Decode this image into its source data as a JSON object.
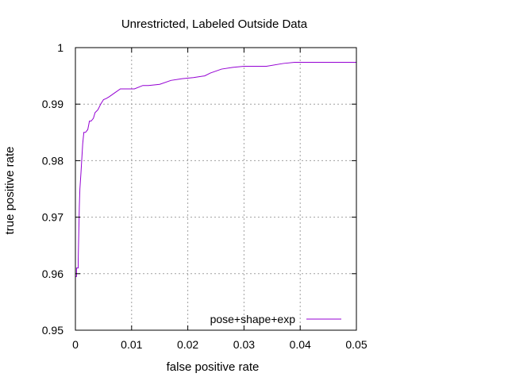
{
  "chart_data": {
    "type": "line",
    "title": "Unrestricted, Labeled Outside Data",
    "xlabel": "false positive rate",
    "ylabel": "true positive rate",
    "xlim": [
      0,
      0.05
    ],
    "ylim": [
      0.95,
      1
    ],
    "x_ticks": [
      0,
      0.01,
      0.02,
      0.03,
      0.04,
      0.05
    ],
    "x_tick_labels": [
      "0",
      "0.01",
      "0.02",
      "0.03",
      "0.04",
      "0.05"
    ],
    "y_ticks": [
      0.95,
      0.96,
      0.97,
      0.98,
      0.99,
      1
    ],
    "y_tick_labels": [
      "0.95",
      "0.96",
      "0.97",
      "0.98",
      "0.99",
      "1"
    ],
    "grid": true,
    "legend_position": "bottom-right",
    "series": [
      {
        "name": "pose+shape+exp",
        "color": "#9400d3",
        "x": [
          0,
          0,
          0.0002,
          0.0002,
          0.0005,
          0.0005,
          0.0007,
          0.0008,
          0.001,
          0.0013,
          0.0015,
          0.0018,
          0.0022,
          0.0025,
          0.0028,
          0.0032,
          0.0035,
          0.004,
          0.0045,
          0.005,
          0.0055,
          0.006,
          0.007,
          0.008,
          0.009,
          0.0105,
          0.012,
          0.013,
          0.015,
          0.017,
          0.019,
          0.021,
          0.023,
          0.024,
          0.026,
          0.028,
          0.03,
          0.034,
          0.037,
          0.039,
          0.041,
          0.045,
          0.05
        ],
        "y": [
          0.95,
          0.9595,
          0.9595,
          0.961,
          0.961,
          0.9625,
          0.972,
          0.975,
          0.978,
          0.983,
          0.985,
          0.985,
          0.9855,
          0.987,
          0.987,
          0.9875,
          0.9885,
          0.989,
          0.99,
          0.9908,
          0.991,
          0.9913,
          0.992,
          0.9927,
          0.9927,
          0.9927,
          0.9933,
          0.9933,
          0.9935,
          0.9942,
          0.9945,
          0.9947,
          0.995,
          0.9955,
          0.9962,
          0.9965,
          0.9967,
          0.9967,
          0.9972,
          0.9974,
          0.9974,
          0.9974,
          0.9974
        ]
      }
    ]
  }
}
